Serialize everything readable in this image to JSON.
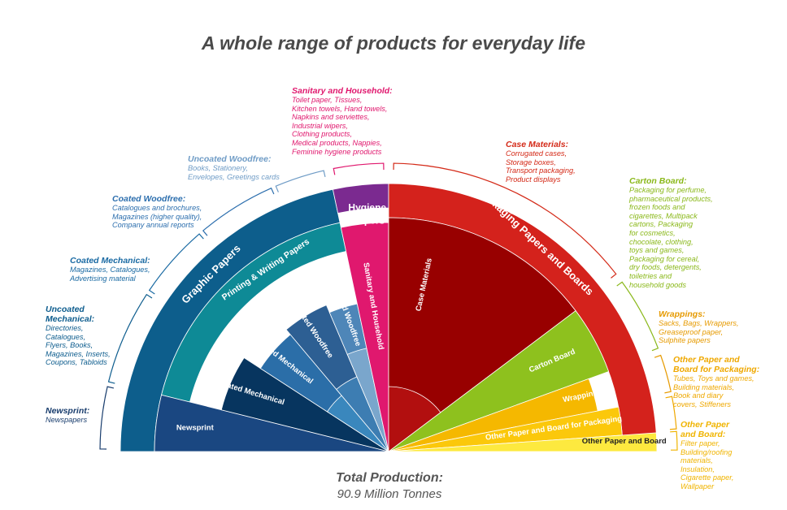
{
  "title": "A whole range of products for everyday life",
  "footer": {
    "label": "Total Production:",
    "value": "90.9 Million Tonnes"
  },
  "chart_data": {
    "type": "pie",
    "shape": "half-donut",
    "title": "A whole range of products for everyday life",
    "total_label": "Total Production:",
    "total_value": "90.9 Million Tonnes",
    "groups": [
      {
        "name": "Graphic Papers",
        "color": "#0d5e8c",
        "share_deg": [
          180,
          102
        ],
        "children": [
          {
            "name": "Newsprint",
            "color": "#1a4781",
            "share_deg": [
              180,
              166
            ]
          },
          {
            "name": "Printing & Writing Papers",
            "color": "#0e8a96",
            "share_deg": [
              166,
              102
            ],
            "children": [
              {
                "name": "Uncoated Mechanical",
                "color": "#07355f",
                "share_deg": [
                  166,
                  147
                ]
              },
              {
                "name": "Coated Mechanical",
                "color": "#2b6ea8",
                "share_deg": [
                  147,
                  130
                ]
              },
              {
                "name": "Coated Woodfree",
                "color": "#2d5f93",
                "share_deg": [
                  130,
                  113
                ]
              },
              {
                "name": "Uncoated Woodfree",
                "color": "#4e86b8",
                "share_deg": [
                  113,
                  102
                ]
              }
            ]
          }
        ]
      },
      {
        "name": "Hygiene Papers",
        "color": "#7b2a90",
        "share_deg": [
          102,
          90
        ],
        "children": [
          {
            "name": "Sanitary and Household",
            "color": "#e0186e",
            "share_deg": [
              102,
              90
            ]
          }
        ]
      },
      {
        "name": "Packaging Papers and Boards",
        "color": "#d4221c",
        "share_deg": [
          90,
          0
        ],
        "children": [
          {
            "name": "Case Materials",
            "color": "#980000",
            "share_deg": [
              90,
              37
            ]
          },
          {
            "name": "Carton Board",
            "color": "#8ec11e",
            "share_deg": [
              37,
              20
            ]
          },
          {
            "name": "Wrappings",
            "color": "#f5b800",
            "share_deg": [
              20,
              11
            ]
          },
          {
            "name": "Other Paper and Board for Packaging",
            "color": "#fbc80b",
            "share_deg": [
              11,
              4
            ]
          },
          {
            "name": "Other Paper and Board",
            "color": "#fde93f",
            "share_deg": [
              4,
              0
            ]
          }
        ]
      }
    ]
  },
  "categories": {
    "sanitary": {
      "heading": "Sanitary and Household:",
      "text": "Toilet paper, Tissues,\nKitchen towels, Hand towels,\nNapkins and serviettes,\nIndustrial wipers,\nClothing products,\nMedical products, Nappies,\nFeminine hygiene products",
      "color": "#e0186e"
    },
    "uncoated_woodfree": {
      "heading": "Uncoated Woodfree:",
      "text": "Books, Stationery,\nEnvelopes, Greetings cards",
      "color": "#6f9cc6"
    },
    "coated_woodfree": {
      "heading": "Coated Woodfree:",
      "text": "Catalogues and brochures,\nMagazines (higher quality),\nCompany annual reports",
      "color": "#2d6fae"
    },
    "coated_mechanical": {
      "heading": "Coated Mechanical:",
      "text": "Magazines, Catalogues,\nAdvertising material",
      "color": "#1a6aa3"
    },
    "uncoated_mechanical": {
      "heading": "Uncoated\nMechanical:",
      "text": "Directories,\nCatalogues,\nFlyers, Books,\nMagazines, Inserts,\nCoupons, Tabloids",
      "color": "#0e5d8e"
    },
    "newsprint": {
      "heading": "Newsprint:",
      "text": "Newspapers",
      "color": "#1a3e6e"
    },
    "case_materials": {
      "heading": "Case Materials:",
      "text": "Corrugated cases,\nStorage boxes,\nTransport packaging,\nProduct displays",
      "color": "#d42a18"
    },
    "carton_board": {
      "heading": "Carton Board:",
      "text": "Packaging for perfume,\npharmaceutical products,\nfrozen foods and\ncigarettes, Multipack\ncartons, Packaging\nfor cosmetics,\nchocolate, clothing,\ntoys and games,\nPackaging for cereal,\ndry foods, detergents,\ntoiletries and\nhousehold goods",
      "color": "#8ab81a"
    },
    "wrappings": {
      "heading": "Wrappings:",
      "text": "Sacks, Bags, Wrappers,\nGreaseproof paper,\nSulphite papers",
      "color": "#e69a00"
    },
    "other_packaging": {
      "heading": "Other Paper and\nBoard for Packaging:",
      "text": "Tubes, Toys and games,\nBuilding materials,\nBook and diary\ncovers, Stiffeners",
      "color": "#efa800"
    },
    "other_board": {
      "heading": "Other Paper\nand Board:",
      "text": "Filter paper,\nBuilding/roofing\nmaterials,\nInsulation,\nCigarette paper,\nWallpaper",
      "color": "#f0b400"
    }
  }
}
